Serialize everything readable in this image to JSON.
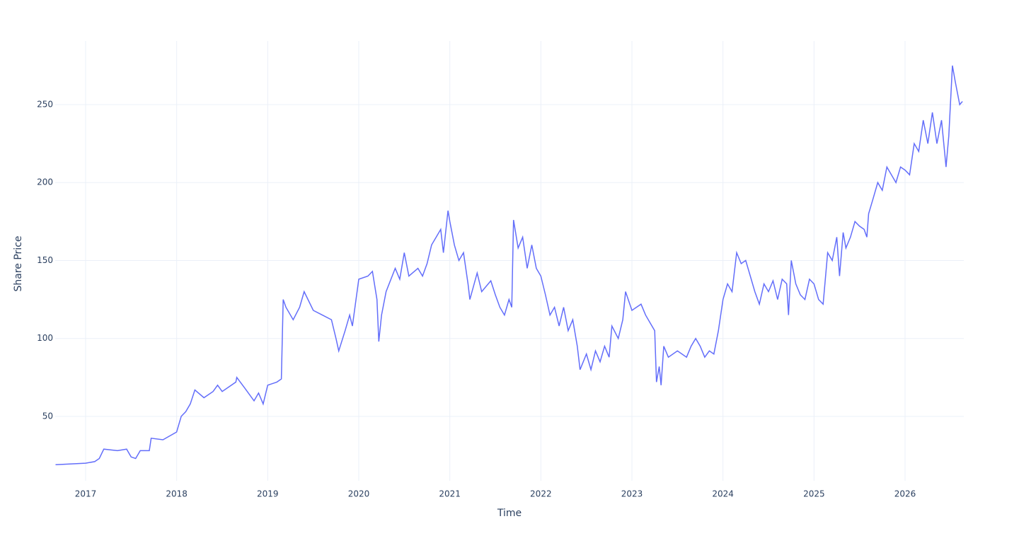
{
  "chart_data": {
    "type": "line",
    "xlabel": "Time",
    "ylabel": "Share Price",
    "x": [
      2016.67,
      2017.0,
      2017.1,
      2017.15,
      2017.2,
      2017.35,
      2017.45,
      2017.5,
      2017.55,
      2017.6,
      2017.7,
      2017.72,
      2017.85,
      2018.0,
      2018.05,
      2018.1,
      2018.15,
      2018.2,
      2018.3,
      2018.4,
      2018.45,
      2018.5,
      2018.65,
      2018.66,
      2018.75,
      2018.85,
      2018.9,
      2018.95,
      2019.0,
      2019.1,
      2019.15,
      2019.17,
      2019.2,
      2019.28,
      2019.35,
      2019.4,
      2019.5,
      2019.6,
      2019.7,
      2019.75,
      2019.78,
      2019.85,
      2019.9,
      2019.93,
      2020.0,
      2020.1,
      2020.15,
      2020.2,
      2020.22,
      2020.25,
      2020.3,
      2020.4,
      2020.45,
      2020.5,
      2020.55,
      2020.65,
      2020.7,
      2020.75,
      2020.8,
      2020.85,
      2020.9,
      2020.93,
      2020.98,
      2021.0,
      2021.05,
      2021.1,
      2021.15,
      2021.2,
      2021.22,
      2021.3,
      2021.35,
      2021.45,
      2021.5,
      2021.55,
      2021.6,
      2021.65,
      2021.68,
      2021.7,
      2021.75,
      2021.8,
      2021.85,
      2021.9,
      2021.95,
      2022.0,
      2022.05,
      2022.1,
      2022.15,
      2022.2,
      2022.25,
      2022.3,
      2022.35,
      2022.4,
      2022.43,
      2022.5,
      2022.55,
      2022.6,
      2022.65,
      2022.7,
      2022.75,
      2022.78,
      2022.85,
      2022.9,
      2022.93,
      2023.0,
      2023.1,
      2023.15,
      2023.2,
      2023.25,
      2023.27,
      2023.3,
      2023.32,
      2023.35,
      2023.4,
      2023.5,
      2023.6,
      2023.65,
      2023.7,
      2023.75,
      2023.8,
      2023.85,
      2023.9,
      2023.95,
      2024.0,
      2024.05,
      2024.1,
      2024.15,
      2024.2,
      2024.25,
      2024.3,
      2024.35,
      2024.4,
      2024.45,
      2024.5,
      2024.55,
      2024.6,
      2024.65,
      2024.7,
      2024.72,
      2024.75,
      2024.8,
      2024.85,
      2024.9,
      2024.95,
      2025.0,
      2025.05,
      2025.1,
      2025.15,
      2025.2,
      2025.25,
      2025.28,
      2025.32,
      2025.35,
      2025.4,
      2025.45,
      2025.5,
      2025.55,
      2025.58,
      2025.6,
      2025.65,
      2025.7,
      2025.75,
      2025.8,
      2025.85,
      2025.9,
      2025.95,
      2026.0,
      2026.05,
      2026.1,
      2026.15,
      2026.2,
      2026.25,
      2026.3,
      2026.35,
      2026.4,
      2026.45,
      2026.48,
      2026.52,
      2026.55,
      2026.6,
      2026.63
    ],
    "values": [
      19,
      20,
      21,
      23,
      29,
      28,
      29,
      24,
      23,
      28,
      28,
      36,
      35,
      40,
      50,
      53,
      58,
      67,
      62,
      66,
      70,
      66,
      72,
      75,
      68,
      60,
      65,
      58,
      70,
      72,
      74,
      125,
      120,
      112,
      120,
      130,
      118,
      115,
      112,
      100,
      92,
      105,
      115,
      108,
      138,
      140,
      143,
      125,
      98,
      115,
      130,
      145,
      138,
      155,
      140,
      145,
      140,
      148,
      160,
      165,
      170,
      155,
      182,
      175,
      160,
      150,
      155,
      135,
      125,
      142,
      130,
      137,
      128,
      120,
      115,
      125,
      120,
      176,
      158,
      165,
      145,
      160,
      145,
      140,
      128,
      115,
      120,
      108,
      120,
      105,
      112,
      95,
      80,
      90,
      80,
      92,
      85,
      95,
      88,
      108,
      100,
      112,
      130,
      118,
      122,
      115,
      110,
      105,
      72,
      82,
      70,
      95,
      88,
      92,
      88,
      95,
      100,
      95,
      88,
      92,
      90,
      105,
      125,
      135,
      130,
      155,
      148,
      150,
      140,
      130,
      122,
      135,
      130,
      137,
      125,
      138,
      135,
      115,
      150,
      135,
      128,
      125,
      138,
      135,
      125,
      122,
      155,
      150,
      165,
      140,
      168,
      158,
      165,
      175,
      172,
      170,
      165,
      180,
      190,
      200,
      195,
      210,
      205,
      200,
      210,
      208,
      205,
      225,
      220,
      240,
      225,
      245,
      225,
      240,
      210,
      230,
      275,
      265,
      250,
      252
    ],
    "color": "#636efa",
    "xlim": [
      2016.666,
      2026.645
    ],
    "xticks": [
      2017,
      2018,
      2019,
      2020,
      2021,
      2022,
      2023,
      2024,
      2025,
      2026
    ],
    "ylim": [
      8.7,
      290.8
    ],
    "yticks": [
      50,
      100,
      150,
      200,
      250
    ],
    "grid": true
  }
}
